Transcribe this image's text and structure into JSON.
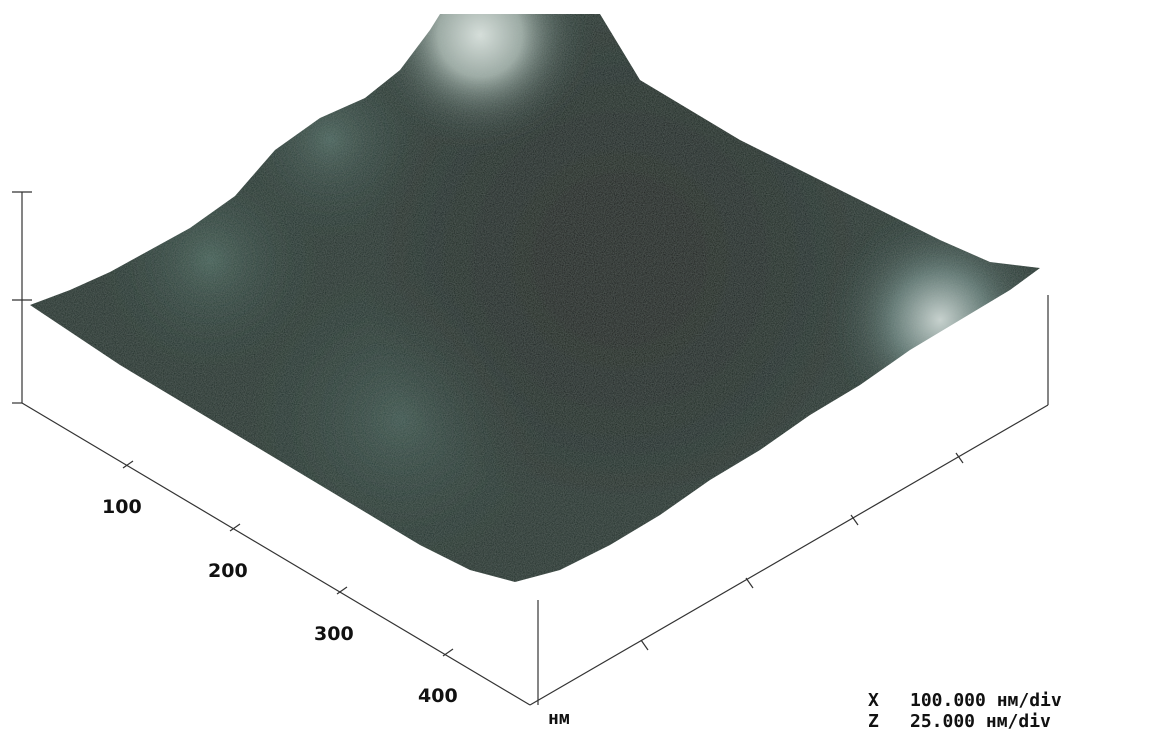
{
  "axis": {
    "ticks": [
      "100",
      "200",
      "300",
      "400"
    ],
    "unit": "нм"
  },
  "scale": [
    {
      "axis": "X",
      "value": "100.000 нм/div"
    },
    {
      "axis": "Z",
      "value": "25.000 нм/div"
    }
  ]
}
